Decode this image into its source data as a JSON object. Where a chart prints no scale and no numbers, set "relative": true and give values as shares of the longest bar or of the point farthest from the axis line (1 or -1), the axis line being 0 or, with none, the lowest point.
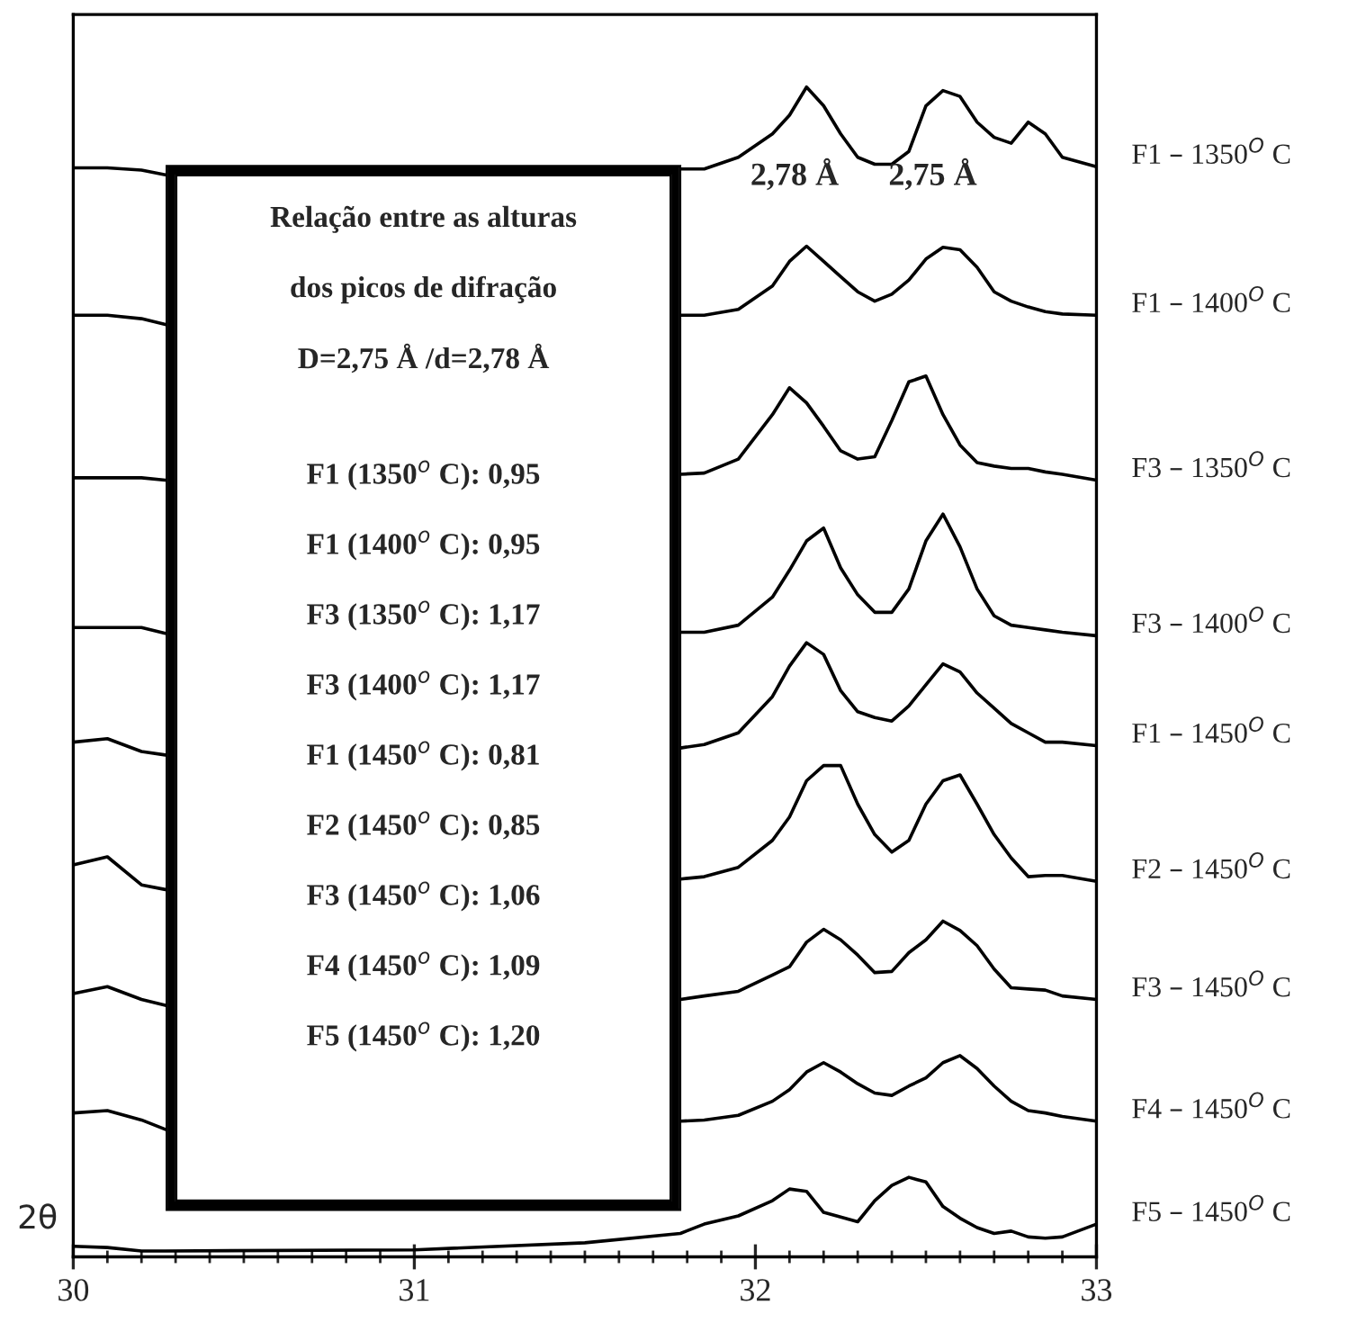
{
  "chart_data": {
    "type": "line",
    "relative": true,
    "xlabel": "2θ",
    "xlim": [
      30,
      33
    ],
    "xticks": [
      30,
      31,
      32,
      33
    ],
    "grid": false,
    "legend": false,
    "marker": "none",
    "line_style": "solid",
    "x": [
      30.0,
      30.1,
      30.2,
      30.27,
      31.0,
      31.5,
      31.78,
      31.85,
      31.95,
      32.05,
      32.1,
      32.15,
      32.2,
      32.25,
      32.3,
      32.35,
      32.4,
      32.45,
      32.5,
      32.55,
      32.6,
      32.65,
      32.7,
      32.75,
      32.8,
      32.85,
      32.9,
      33.0
    ],
    "series": [
      {
        "name": "F1 – 1350$^{O}$ C",
        "color": "#000000",
        "values": [
          0.931,
          0.931,
          0.929,
          0.925,
          null,
          null,
          0.93,
          0.93,
          0.94,
          0.96,
          0.976,
          1.0,
          0.984,
          0.96,
          0.94,
          0.934,
          0.934,
          0.945,
          0.984,
          0.997,
          0.992,
          0.97,
          0.957,
          0.952,
          0.97,
          0.96,
          0.94,
          0.932
        ]
      },
      {
        "name": "F1 – 1400$^{O}$ C",
        "color": "#000000",
        "values": [
          0.805,
          0.805,
          0.802,
          0.797,
          null,
          null,
          0.805,
          0.805,
          0.81,
          0.83,
          0.851,
          0.864,
          0.851,
          0.838,
          0.825,
          0.817,
          0.823,
          0.835,
          0.853,
          0.863,
          0.861,
          0.846,
          0.825,
          0.817,
          0.812,
          0.808,
          0.806,
          0.805
        ]
      },
      {
        "name": "F3 – 1350$^{O}$ C",
        "color": "#000000",
        "values": [
          0.666,
          0.666,
          0.666,
          0.664,
          null,
          null,
          0.669,
          0.67,
          0.682,
          0.72,
          0.743,
          0.73,
          0.71,
          0.689,
          0.682,
          0.684,
          0.715,
          0.748,
          0.753,
          0.72,
          0.694,
          0.679,
          0.676,
          0.674,
          0.674,
          0.671,
          0.669,
          0.664
        ]
      },
      {
        "name": "F3 – 1400$^{O}$ C",
        "color": "#000000",
        "values": [
          0.538,
          0.538,
          0.538,
          0.533,
          null,
          null,
          0.534,
          0.534,
          0.54,
          0.564,
          0.587,
          0.612,
          0.623,
          0.589,
          0.566,
          0.551,
          0.551,
          0.571,
          0.612,
          0.635,
          0.607,
          0.571,
          0.548,
          0.54,
          0.538,
          0.536,
          0.534,
          0.531
        ]
      },
      {
        "name": "F1 – 1450$^{O}$ C",
        "color": "#000000",
        "values": [
          0.44,
          0.443,
          0.432,
          0.429,
          null,
          null,
          0.435,
          0.438,
          0.448,
          0.479,
          0.505,
          0.525,
          0.515,
          0.484,
          0.466,
          0.461,
          0.458,
          0.471,
          0.489,
          0.507,
          0.5,
          0.482,
          0.469,
          0.456,
          0.448,
          0.44,
          0.44,
          0.437
        ]
      },
      {
        "name": "F2 – 1450$^{O}$ C",
        "color": "#000000",
        "values": [
          0.335,
          0.342,
          0.318,
          0.314,
          null,
          null,
          0.323,
          0.325,
          0.333,
          0.356,
          0.376,
          0.407,
          0.42,
          0.42,
          0.387,
          0.361,
          0.346,
          0.356,
          0.387,
          0.407,
          0.412,
          0.387,
          0.361,
          0.341,
          0.325,
          0.326,
          0.326,
          0.321
        ]
      },
      {
        "name": "F3 – 1450$^{O}$ C",
        "color": "#000000",
        "values": [
          0.225,
          0.231,
          0.22,
          0.215,
          null,
          null,
          0.22,
          0.223,
          0.227,
          0.241,
          0.248,
          0.269,
          0.28,
          0.271,
          0.258,
          0.243,
          0.244,
          0.26,
          0.271,
          0.287,
          0.279,
          0.266,
          0.246,
          0.23,
          0.229,
          0.228,
          0.223,
          0.22
        ]
      },
      {
        "name": "F4 – 1450$^{O}$ C",
        "color": "#000000",
        "values": [
          0.123,
          0.125,
          0.117,
          0.109,
          null,
          null,
          0.116,
          0.117,
          0.121,
          0.133,
          0.143,
          0.158,
          0.166,
          0.158,
          0.148,
          0.14,
          0.138,
          0.146,
          0.153,
          0.166,
          0.172,
          0.161,
          0.146,
          0.133,
          0.125,
          0.123,
          0.12,
          0.116
        ]
      },
      {
        "name": "F5 – 1450$^{O}$ C",
        "color": "#000000",
        "values": [
          0.009,
          0.008,
          0.005,
          0.005,
          0.006,
          0.012,
          0.02,
          0.028,
          0.035,
          0.048,
          0.058,
          0.056,
          0.038,
          0.034,
          0.03,
          0.048,
          0.061,
          0.068,
          0.064,
          0.043,
          0.033,
          0.025,
          0.02,
          0.022,
          0.017,
          0.016,
          0.017,
          0.028
        ]
      }
    ],
    "annotations": [
      "2,78 Å",
      "2,75 Å",
      "Relação entre as alturas",
      "dos picos de difração",
      "D=2,75 Å /d=2,78 Å",
      "F1 (1350$^{o}$ C): 0,95",
      "F1 (1400$^{o}$ C): 0,95",
      "F3 (1350$^{o}$ C): 1,17",
      "F3 (1400$^{o}$ C): 1,17",
      "F1 (1450$^{o}$ C): 0,81",
      "F2 (1450$^{o}$ C): 0,85",
      "F3 (1450$^{o}$ C): 1,06",
      "F4 (1450$^{o}$ C): 1,09",
      "F5 (1450$^{o}$ C): 1,20"
    ]
  }
}
